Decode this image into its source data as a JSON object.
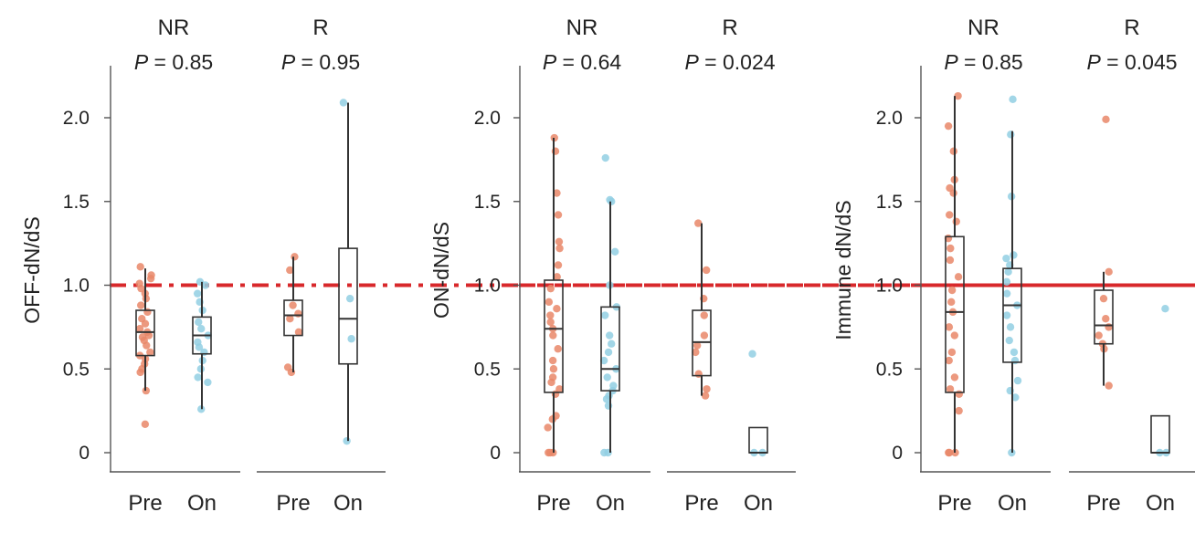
{
  "colors": {
    "pre": "#e98768",
    "on": "#92cfe3",
    "reference": "#d8282b",
    "axis": "#555555",
    "box": "#333333"
  },
  "chart_data": [
    {
      "type": "box",
      "ylabel": "OFF-dN/dS",
      "ylim": [
        -0.1,
        2.3
      ],
      "yticks": [
        "0",
        "0.5",
        "1.0",
        "1.5",
        "2.0"
      ],
      "reference_line": 1.0,
      "categories": [
        "Pre",
        "On",
        "Pre",
        "On"
      ],
      "groups": [
        {
          "label": "NR",
          "p_prefix": "P",
          "p_value": "= 0.85"
        },
        {
          "label": "R",
          "p_prefix": "P",
          "p_value": "= 0.95"
        }
      ],
      "boxes": [
        {
          "group": 0,
          "condition": "Pre",
          "q1": 0.58,
          "median": 0.72,
          "q3": 0.85,
          "wlow": 0.37,
          "whigh": 1.1,
          "points": [
            0.17,
            0.37,
            0.48,
            0.5,
            0.53,
            0.56,
            0.58,
            0.6,
            0.64,
            0.67,
            0.69,
            0.7,
            0.72,
            0.74,
            0.77,
            0.8,
            0.84,
            0.88,
            0.92,
            0.95,
            0.98,
            1.01,
            1.04,
            1.06,
            1.11
          ]
        },
        {
          "group": 0,
          "condition": "On",
          "q1": 0.59,
          "median": 0.7,
          "q3": 0.81,
          "wlow": 0.26,
          "whigh": 1.02,
          "points": [
            0.26,
            0.42,
            0.45,
            0.5,
            0.55,
            0.6,
            0.63,
            0.66,
            0.7,
            0.74,
            0.78,
            0.85,
            0.9,
            0.95,
            1.0,
            1.02
          ]
        },
        {
          "group": 1,
          "condition": "Pre",
          "q1": 0.7,
          "median": 0.82,
          "q3": 0.91,
          "wlow": 0.48,
          "whigh": 1.17,
          "points": [
            0.48,
            0.51,
            0.72,
            0.8,
            0.83,
            0.88,
            1.09,
            1.17
          ]
        },
        {
          "group": 1,
          "condition": "On",
          "q1": 0.53,
          "median": 0.8,
          "q3": 1.22,
          "wlow": 0.07,
          "whigh": 2.09,
          "points": [
            0.07,
            0.68,
            0.92,
            2.09
          ]
        }
      ]
    },
    {
      "type": "box",
      "ylabel": "ON-dN/dS",
      "ylim": [
        -0.1,
        2.3
      ],
      "yticks": [
        "0",
        "0.5",
        "1.0",
        "1.5",
        "2.0"
      ],
      "reference_line": 1.0,
      "categories": [
        "Pre",
        "On",
        "Pre",
        "On"
      ],
      "groups": [
        {
          "label": "NR",
          "p_prefix": "P",
          "p_value": "= 0.64"
        },
        {
          "label": "R",
          "p_prefix": "P",
          "p_value": "= 0.024"
        }
      ],
      "boxes": [
        {
          "group": 0,
          "condition": "Pre",
          "q1": 0.36,
          "median": 0.74,
          "q3": 1.03,
          "wlow": 0.0,
          "whigh": 1.88,
          "points": [
            0,
            0,
            0,
            0.15,
            0.2,
            0.22,
            0.35,
            0.38,
            0.42,
            0.45,
            0.5,
            0.55,
            0.62,
            0.7,
            0.74,
            0.78,
            0.82,
            0.86,
            0.9,
            0.98,
            1.05,
            1.12,
            1.22,
            1.26,
            1.42,
            1.55,
            1.8,
            1.88
          ]
        },
        {
          "group": 0,
          "condition": "On",
          "q1": 0.37,
          "median": 0.5,
          "q3": 0.87,
          "wlow": 0.0,
          "whigh": 1.5,
          "points": [
            0,
            0,
            0.28,
            0.32,
            0.34,
            0.37,
            0.4,
            0.45,
            0.5,
            0.55,
            0.6,
            0.65,
            0.7,
            0.82,
            0.87,
            1.0,
            1.2,
            1.5,
            1.51,
            1.76
          ]
        },
        {
          "group": 1,
          "condition": "Pre",
          "q1": 0.46,
          "median": 0.66,
          "q3": 0.85,
          "wlow": 0.34,
          "whigh": 1.37,
          "points": [
            0.34,
            0.38,
            0.47,
            0.6,
            0.64,
            0.7,
            0.82,
            0.92,
            1.09,
            1.37
          ]
        },
        {
          "group": 1,
          "condition": "On",
          "q1": 0.0,
          "median": 0.0,
          "q3": 0.15,
          "wlow": 0.0,
          "whigh": 0.15,
          "points": [
            0.0,
            0.0,
            0.59
          ]
        }
      ]
    },
    {
      "type": "box",
      "ylabel": "Immune dN/dS",
      "ylim": [
        -0.1,
        2.3
      ],
      "yticks": [
        "0",
        "0.5",
        "1.0",
        "1.5",
        "2.0"
      ],
      "reference_line": 1.0,
      "categories": [
        "Pre",
        "On",
        "Pre",
        "On"
      ],
      "groups": [
        {
          "label": "NR",
          "p_prefix": "P",
          "p_value": "= 0.85"
        },
        {
          "label": "R",
          "p_prefix": "P",
          "p_value": "= 0.045"
        }
      ],
      "boxes": [
        {
          "group": 0,
          "condition": "Pre",
          "q1": 0.36,
          "median": 0.84,
          "q3": 1.29,
          "wlow": 0.0,
          "whigh": 2.13,
          "points": [
            0,
            0,
            0,
            0.25,
            0.35,
            0.38,
            0.45,
            0.55,
            0.6,
            0.7,
            0.75,
            0.84,
            0.9,
            0.97,
            1.05,
            1.15,
            1.22,
            1.28,
            1.38,
            1.42,
            1.55,
            1.58,
            1.63,
            1.8,
            1.95,
            2.13
          ]
        },
        {
          "group": 0,
          "condition": "On",
          "q1": 0.54,
          "median": 0.88,
          "q3": 1.1,
          "wlow": 0.0,
          "whigh": 1.92,
          "points": [
            0,
            0.33,
            0.37,
            0.43,
            0.55,
            0.6,
            0.67,
            0.75,
            0.82,
            0.88,
            0.95,
            1.02,
            1.08,
            1.12,
            1.16,
            1.18,
            1.53,
            1.9,
            2.11
          ]
        },
        {
          "group": 1,
          "condition": "Pre",
          "q1": 0.65,
          "median": 0.76,
          "q3": 0.97,
          "wlow": 0.4,
          "whigh": 1.08,
          "points": [
            0.4,
            0.62,
            0.65,
            0.7,
            0.75,
            0.8,
            0.92,
            1.08,
            1.99
          ]
        },
        {
          "group": 1,
          "condition": "On",
          "q1": 0.0,
          "median": 0.0,
          "q3": 0.22,
          "wlow": 0.0,
          "whigh": 0.22,
          "points": [
            0.0,
            0.0,
            0.86
          ]
        }
      ]
    }
  ]
}
